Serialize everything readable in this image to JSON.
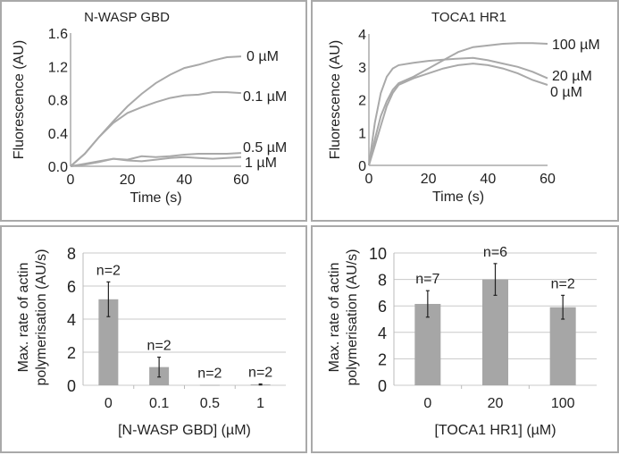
{
  "chart_data": [
    {
      "id": "nwasp-time",
      "type": "line",
      "title": "N-WASP GBD",
      "xlabel": "Time (s)",
      "ylabel": "Fluorescence (AU)",
      "xlim": [
        0,
        60
      ],
      "ylim": [
        0,
        1.6
      ],
      "xticks": [
        "0",
        "20",
        "40",
        "60"
      ],
      "yticks": [
        "0.0",
        "0.4",
        "0.8",
        "1.2",
        "1.6"
      ],
      "grid": false,
      "line_color": "#a9a9a9",
      "series": [
        {
          "name": "0 µM",
          "x": [
            0,
            5,
            10,
            15,
            20,
            25,
            30,
            35,
            40,
            45,
            50,
            55,
            60
          ],
          "y": [
            0,
            0.15,
            0.35,
            0.54,
            0.72,
            0.87,
            1.0,
            1.1,
            1.18,
            1.22,
            1.27,
            1.31,
            1.32
          ]
        },
        {
          "name": "0.1 µM",
          "x": [
            0,
            5,
            10,
            15,
            20,
            25,
            30,
            35,
            40,
            45,
            50,
            55,
            60
          ],
          "y": [
            0,
            0.15,
            0.35,
            0.52,
            0.64,
            0.71,
            0.77,
            0.82,
            0.85,
            0.86,
            0.89,
            0.89,
            0.88
          ]
        },
        {
          "name": "0.5 µM",
          "x": [
            0,
            5,
            10,
            15,
            20,
            25,
            30,
            35,
            40,
            45,
            50,
            55,
            60
          ],
          "y": [
            0,
            0.02,
            0.05,
            0.09,
            0.08,
            0.12,
            0.11,
            0.12,
            0.14,
            0.15,
            0.15,
            0.15,
            0.16
          ]
        },
        {
          "name": "1 µM",
          "x": [
            0,
            5,
            10,
            15,
            20,
            25,
            30,
            35,
            40,
            45,
            50,
            55,
            60
          ],
          "y": [
            0,
            0.03,
            0.06,
            0.09,
            0.07,
            0.06,
            0.08,
            0.1,
            0.11,
            0.1,
            0.09,
            0.1,
            0.11
          ]
        }
      ]
    },
    {
      "id": "toca-time",
      "type": "line",
      "title": "TOCA1 HR1",
      "xlabel": "Time (s)",
      "ylabel": "Fluorescence (AU)",
      "xlim": [
        0,
        60
      ],
      "ylim": [
        0,
        4
      ],
      "xticks": [
        "0",
        "20",
        "40",
        "60"
      ],
      "yticks": [
        "0",
        "1",
        "2",
        "3",
        "4"
      ],
      "grid": false,
      "line_color": "#a9a9a9",
      "series": [
        {
          "name": "100 µM",
          "x": [
            0,
            2,
            4,
            6,
            8,
            10,
            15,
            20,
            25,
            30,
            35,
            40,
            45,
            50,
            55,
            60
          ],
          "y": [
            0,
            0.8,
            1.5,
            1.95,
            2.3,
            2.5,
            2.7,
            2.95,
            3.2,
            3.45,
            3.6,
            3.65,
            3.7,
            3.72,
            3.72,
            3.7
          ]
        },
        {
          "name": "20 µM",
          "x": [
            0,
            2,
            4,
            6,
            8,
            10,
            15,
            20,
            25,
            30,
            35,
            40,
            45,
            50,
            55,
            60
          ],
          "y": [
            0,
            1.3,
            2.2,
            2.7,
            2.95,
            3.05,
            3.12,
            3.18,
            3.22,
            3.25,
            3.27,
            3.2,
            3.1,
            3.0,
            2.85,
            2.65
          ]
        },
        {
          "name": "0 µM",
          "x": [
            0,
            2,
            4,
            6,
            8,
            10,
            15,
            20,
            25,
            30,
            35,
            40,
            45,
            50,
            55,
            60
          ],
          "y": [
            0,
            0.6,
            1.2,
            1.8,
            2.2,
            2.45,
            2.65,
            2.8,
            2.95,
            3.05,
            3.1,
            3.05,
            2.95,
            2.8,
            2.6,
            2.45
          ]
        }
      ]
    },
    {
      "id": "nwasp-rate",
      "type": "bar",
      "title": "",
      "xlabel": "[N-WASP GBD] (µM)",
      "ylabel_lines": [
        "Max. rate of actin",
        "polymerisation (AU/s)"
      ],
      "ylim": [
        0,
        8
      ],
      "yticks": [
        "0",
        "2",
        "4",
        "6",
        "8"
      ],
      "grid": true,
      "bar_color": "#a6a6a6",
      "categories": [
        "0",
        "0.1",
        "0.5",
        "1"
      ],
      "values": [
        5.2,
        1.1,
        0.02,
        0.05
      ],
      "errors": [
        1.05,
        0.6,
        0.0,
        0.03
      ],
      "annotations": [
        "n=2",
        "n=2",
        "n=2",
        "n=2"
      ]
    },
    {
      "id": "toca-rate",
      "type": "bar",
      "title": "",
      "xlabel": "[TOCA1 HR1] (µM)",
      "ylabel_lines": [
        "Max. rate of actin",
        "polymerisation (AU/s)"
      ],
      "ylim": [
        0,
        10
      ],
      "yticks": [
        "0",
        "2",
        "4",
        "6",
        "8",
        "10"
      ],
      "grid": true,
      "bar_color": "#a6a6a6",
      "categories": [
        "0",
        "20",
        "100"
      ],
      "values": [
        6.15,
        8.0,
        5.9
      ],
      "errors": [
        1.0,
        1.2,
        0.9
      ],
      "annotations": [
        "n=7",
        "n=6",
        "n=2"
      ]
    }
  ]
}
